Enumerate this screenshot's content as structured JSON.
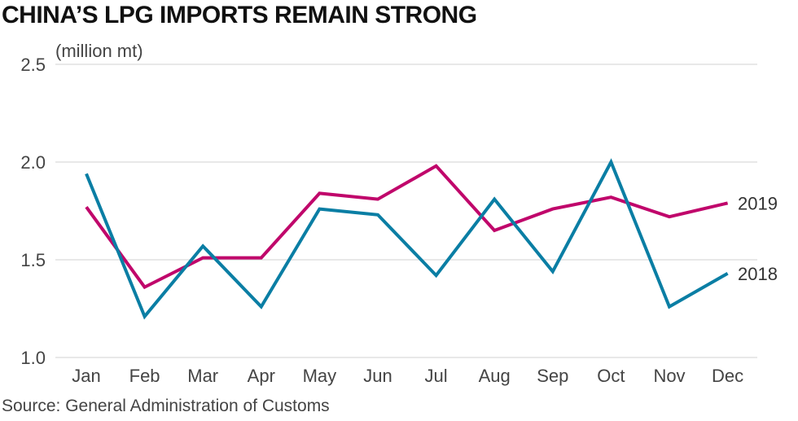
{
  "chart_data": {
    "type": "line",
    "title": "CHINA’S LPG IMPORTS REMAIN STRONG",
    "unit_label": "(million mt)",
    "source": "Source: General Administration of Customs",
    "categories": [
      "Jan",
      "Feb",
      "Mar",
      "Apr",
      "May",
      "Jun",
      "Jul",
      "Aug",
      "Sep",
      "Oct",
      "Nov",
      "Dec"
    ],
    "ylim": [
      1.0,
      2.5
    ],
    "yticks": [
      "1.0",
      "1.5",
      "2.0",
      "2.5"
    ],
    "grid": true,
    "series": [
      {
        "name": "2019",
        "color": "#c0066b",
        "values": [
          1.77,
          1.36,
          1.51,
          1.51,
          1.84,
          1.81,
          1.98,
          1.65,
          1.76,
          1.82,
          1.72,
          1.79
        ]
      },
      {
        "name": "2018",
        "color": "#0a7ea4",
        "values": [
          1.94,
          1.21,
          1.57,
          1.26,
          1.76,
          1.73,
          1.42,
          1.81,
          1.44,
          2.0,
          1.26,
          1.43
        ]
      }
    ]
  }
}
